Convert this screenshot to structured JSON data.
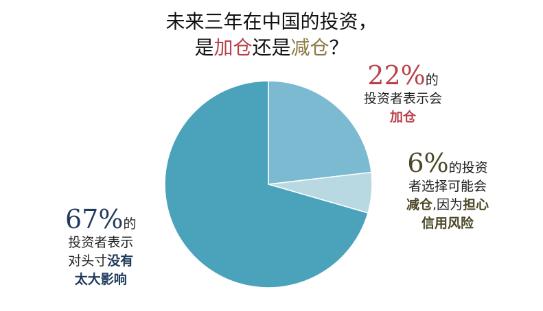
{
  "title": {
    "line1": "未来三年在中国的投资，",
    "line2_part1": "是",
    "line2_add": "加仓",
    "line2_part2": "还是",
    "line2_reduce": "减仓",
    "line2_end": "？"
  },
  "colors": {
    "add": "#7bbad0",
    "reduce": "#b9d9e2",
    "no_effect": "#4aa3bb",
    "red_text": "#b8404a",
    "olive_text": "#8a7a45"
  },
  "chart_data": {
    "type": "pie",
    "title": "未来三年在中国的投资，是加仓还是减仓？",
    "slices": [
      {
        "label": "加仓",
        "value": 22
      },
      {
        "label": "减仓",
        "value": 6
      },
      {
        "label": "没有太大影响",
        "value": 67
      }
    ]
  },
  "annotations": {
    "add": {
      "pct": "22%",
      "line1": "的",
      "line2": "投资者表示会",
      "line3": "加仓"
    },
    "reduce": {
      "pct": "6%",
      "line1": "的投资",
      "line2": "者选择可能会",
      "line3a": "减仓",
      "line3b": ",因为",
      "line3c": "担心",
      "line4": "信用风险"
    },
    "none": {
      "pct": "67%",
      "line1": "的",
      "line2": "投资者表示",
      "line3a": "对头寸",
      "line3b": "没有",
      "line4": "太大影响"
    }
  }
}
